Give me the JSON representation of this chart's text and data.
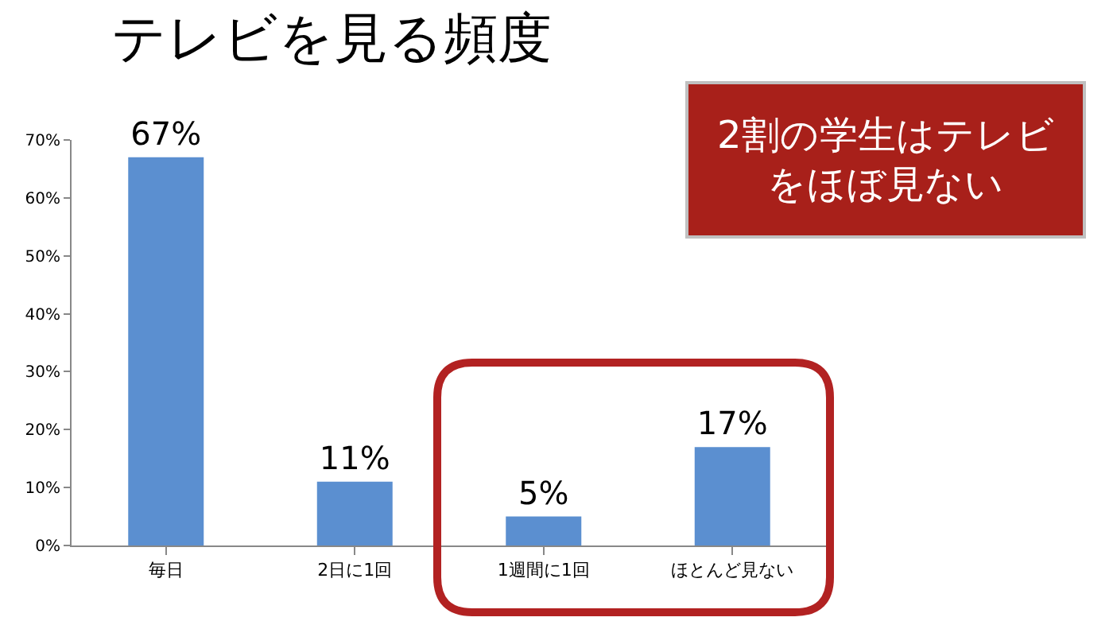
{
  "chart_data": {
    "type": "bar",
    "title": "テレビを見る頻度",
    "categories": [
      "毎日",
      "2日に1回",
      "1週間に1回",
      "ほとんど見ない"
    ],
    "values": [
      67,
      11,
      5,
      17
    ],
    "value_labels": [
      "67%",
      "11%",
      "5%",
      "17%"
    ],
    "color": "#5b8fd0",
    "ylim": [
      0,
      70
    ],
    "yticks": [
      {
        "value": 0,
        "label": "0%"
      },
      {
        "value": 10,
        "label": "10%"
      },
      {
        "value": 20,
        "label": "20%"
      },
      {
        "value": 30,
        "label": "30%"
      },
      {
        "value": 40,
        "label": "40%"
      },
      {
        "value": 50,
        "label": "50%"
      },
      {
        "value": 60,
        "label": "60%"
      },
      {
        "value": 70,
        "label": "70%"
      }
    ],
    "annotations": [
      "2割の学生はテレビをほぼ見ない"
    ]
  }
}
